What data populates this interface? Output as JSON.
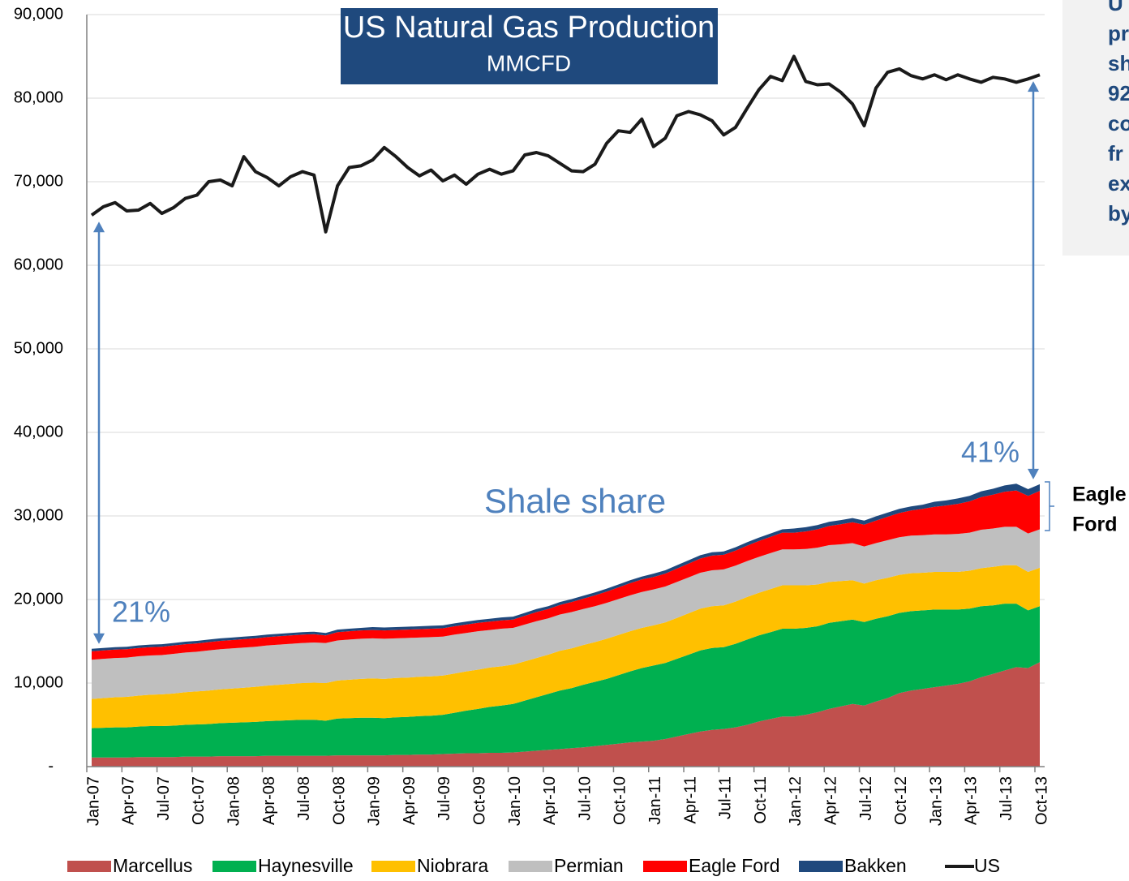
{
  "chart_data": {
    "type": "area",
    "title": "US Natural Gas Production",
    "subtitle": "MMCFD",
    "categories": [
      "Jan-07",
      null,
      null,
      "Apr-07",
      null,
      null,
      "Jul-07",
      null,
      null,
      "Oct-07",
      null,
      null,
      "Jan-08",
      null,
      null,
      "Apr-08",
      null,
      null,
      "Jul-08",
      null,
      null,
      "Oct-08",
      null,
      null,
      "Jan-09",
      null,
      null,
      "Apr-09",
      null,
      null,
      "Jul-09",
      null,
      null,
      "Oct-09",
      null,
      null,
      "Jan-10",
      null,
      null,
      "Apr-10",
      null,
      null,
      "Jul-10",
      null,
      null,
      "Oct-10",
      null,
      null,
      "Jan-11",
      null,
      null,
      "Apr-11",
      null,
      null,
      "Jul-11",
      null,
      null,
      "Oct-11",
      null,
      null,
      "Jan-12",
      null,
      null,
      "Apr-12",
      null,
      null,
      "Jul-12",
      null,
      null,
      "Oct-12",
      null,
      null,
      "Jan-13",
      null,
      null,
      "Apr-13",
      null,
      null,
      "Jul-13",
      null,
      null,
      "Oct-13"
    ],
    "ylim": [
      0,
      90000
    ],
    "yticks": [
      {
        "value": 0,
        "label": "-"
      },
      {
        "value": 10000,
        "label": "10,000"
      },
      {
        "value": 20000,
        "label": "20,000"
      },
      {
        "value": 30000,
        "label": "30,000"
      },
      {
        "value": 40000,
        "label": "40,000"
      },
      {
        "value": 50000,
        "label": "50,000"
      },
      {
        "value": 60000,
        "label": "60,000"
      },
      {
        "value": 70000,
        "label": "70,000"
      },
      {
        "value": 80000,
        "label": "80,000"
      },
      {
        "value": 90000,
        "label": "90,000"
      }
    ],
    "grid": true,
    "legend": "bottom",
    "series": [
      {
        "name": "Marcellus",
        "type": "area",
        "color": "#C0504D",
        "values": [
          1100,
          1100,
          1100,
          1100,
          1150,
          1150,
          1150,
          1150,
          1200,
          1200,
          1200,
          1250,
          1250,
          1250,
          1250,
          1300,
          1300,
          1300,
          1300,
          1300,
          1300,
          1350,
          1350,
          1350,
          1350,
          1350,
          1400,
          1400,
          1450,
          1450,
          1500,
          1550,
          1600,
          1600,
          1650,
          1650,
          1700,
          1800,
          1900,
          2000,
          2100,
          2200,
          2300,
          2450,
          2600,
          2750,
          2900,
          3000,
          3100,
          3300,
          3600,
          3900,
          4200,
          4400,
          4500,
          4700,
          5000,
          5400,
          5700,
          6000,
          6000,
          6200,
          6500,
          6900,
          7200,
          7500,
          7300,
          7800,
          8200,
          8800,
          9100,
          9300,
          9500,
          9700,
          9900,
          10200,
          10700,
          11100,
          11500,
          11900,
          11800,
          12500
        ]
      },
      {
        "name": "Haynesville",
        "type": "area",
        "color": "#00B050",
        "values": [
          3500,
          3550,
          3600,
          3600,
          3650,
          3700,
          3700,
          3750,
          3800,
          3850,
          3900,
          3950,
          4000,
          4050,
          4100,
          4150,
          4200,
          4250,
          4300,
          4300,
          4200,
          4400,
          4450,
          4500,
          4500,
          4450,
          4500,
          4550,
          4600,
          4650,
          4700,
          4900,
          5100,
          5300,
          5500,
          5650,
          5800,
          6100,
          6400,
          6700,
          7000,
          7200,
          7500,
          7700,
          7900,
          8200,
          8500,
          8800,
          9000,
          9100,
          9300,
          9500,
          9700,
          9800,
          9800,
          10000,
          10200,
          10300,
          10400,
          10500,
          10500,
          10400,
          10300,
          10300,
          10200,
          10100,
          10000,
          9900,
          9800,
          9600,
          9500,
          9400,
          9300,
          9100,
          8900,
          8700,
          8500,
          8200,
          8000,
          7600,
          6900,
          6700
        ]
      },
      {
        "name": "Niobrara",
        "type": "area",
        "color": "#FFC000",
        "values": [
          3500,
          3550,
          3600,
          3650,
          3700,
          3750,
          3800,
          3850,
          3900,
          3950,
          4000,
          4050,
          4100,
          4150,
          4200,
          4250,
          4300,
          4350,
          4400,
          4450,
          4500,
          4550,
          4600,
          4650,
          4700,
          4700,
          4700,
          4700,
          4700,
          4700,
          4700,
          4700,
          4700,
          4700,
          4700,
          4700,
          4700,
          4700,
          4700,
          4700,
          4750,
          4750,
          4750,
          4750,
          4800,
          4800,
          4800,
          4800,
          4800,
          4850,
          4900,
          4950,
          5000,
          5000,
          5000,
          5050,
          5100,
          5100,
          5150,
          5200,
          5200,
          5100,
          5000,
          4900,
          4800,
          4700,
          4600,
          4600,
          4600,
          4550,
          4550,
          4500,
          4500,
          4500,
          4500,
          4550,
          4550,
          4600,
          4600,
          4600,
          4600,
          4600
        ]
      },
      {
        "name": "Permian",
        "type": "area",
        "color": "#BFBFBF",
        "values": [
          4700,
          4700,
          4700,
          4700,
          4700,
          4700,
          4700,
          4750,
          4750,
          4750,
          4800,
          4800,
          4800,
          4800,
          4800,
          4800,
          4800,
          4800,
          4800,
          4800,
          4800,
          4800,
          4800,
          4800,
          4800,
          4800,
          4750,
          4750,
          4700,
          4700,
          4650,
          4650,
          4600,
          4600,
          4500,
          4500,
          4400,
          4400,
          4400,
          4350,
          4350,
          4350,
          4300,
          4300,
          4300,
          4300,
          4300,
          4300,
          4300,
          4300,
          4300,
          4300,
          4300,
          4300,
          4300,
          4300,
          4300,
          4300,
          4300,
          4300,
          4300,
          4350,
          4400,
          4400,
          4400,
          4450,
          4450,
          4450,
          4500,
          4500,
          4500,
          4500,
          4500,
          4500,
          4550,
          4550,
          4600,
          4600,
          4600,
          4600,
          4600,
          4600
        ]
      },
      {
        "name": "Eagle Ford",
        "type": "area",
        "color": "#FF0000",
        "values": [
          1000,
          1000,
          1000,
          1000,
          1000,
          1000,
          1000,
          1000,
          1000,
          1000,
          1000,
          1000,
          1000,
          1000,
          1000,
          1000,
          1000,
          1000,
          1000,
          1000,
          900,
          1000,
          1000,
          1000,
          1000,
          1000,
          1000,
          1000,
          1000,
          1000,
          1000,
          1000,
          1000,
          1000,
          1000,
          1000,
          1000,
          1050,
          1100,
          1100,
          1150,
          1200,
          1250,
          1300,
          1350,
          1400,
          1450,
          1500,
          1500,
          1550,
          1600,
          1650,
          1700,
          1750,
          1750,
          1800,
          1850,
          1900,
          1950,
          2000,
          2000,
          2100,
          2200,
          2300,
          2400,
          2500,
          2600,
          2700,
          2800,
          2900,
          3000,
          3150,
          3300,
          3450,
          3600,
          3750,
          3900,
          4050,
          4200,
          4350,
          4500,
          4600
        ]
      },
      {
        "name": "Bakken",
        "type": "area",
        "color": "#1F497D",
        "values": [
          300,
          300,
          300,
          300,
          300,
          300,
          300,
          300,
          300,
          300,
          300,
          300,
          300,
          300,
          300,
          300,
          300,
          300,
          300,
          300,
          300,
          300,
          300,
          300,
          350,
          350,
          350,
          350,
          350,
          350,
          350,
          350,
          350,
          350,
          350,
          350,
          350,
          350,
          350,
          350,
          350,
          350,
          350,
          350,
          350,
          350,
          350,
          350,
          400,
          400,
          400,
          400,
          400,
          400,
          400,
          400,
          400,
          400,
          400,
          400,
          500,
          500,
          500,
          500,
          500,
          500,
          500,
          500,
          500,
          500,
          500,
          500,
          600,
          600,
          650,
          650,
          700,
          700,
          750,
          800,
          800,
          800
        ]
      },
      {
        "name": "US",
        "type": "line",
        "color": "#1A1A1A",
        "values": [
          66000,
          67000,
          67500,
          66500,
          66600,
          67400,
          66200,
          66900,
          68000,
          68400,
          70000,
          70200,
          69500,
          73000,
          71200,
          70500,
          69500,
          70600,
          71200,
          70800,
          64000,
          69500,
          71700,
          71900,
          72600,
          74100,
          73000,
          71700,
          70700,
          71400,
          70100,
          70800,
          69700,
          70900,
          71500,
          70900,
          71300,
          73200,
          73500,
          73100,
          72200,
          71300,
          71200,
          72100,
          74600,
          76100,
          75900,
          77500,
          74200,
          75200,
          77900,
          78400,
          78000,
          77300,
          75600,
          76500,
          78800,
          81000,
          82600,
          82100,
          85000,
          82000,
          81600,
          81700,
          80700,
          79300,
          76700,
          81200,
          83100,
          83500,
          82700,
          82300,
          82800,
          82200,
          82800,
          82300,
          81900,
          82500,
          82300,
          81900,
          82300,
          82800
        ]
      }
    ],
    "annotations": {
      "shale_label": "Shale share",
      "start_share": "21%",
      "end_share": "41%",
      "bracket_label": [
        "Eagle",
        "Ford"
      ]
    },
    "side_panel": [
      "U",
      "pr",
      "sh",
      "92",
      "co",
      "fr",
      "ex",
      "by"
    ]
  }
}
